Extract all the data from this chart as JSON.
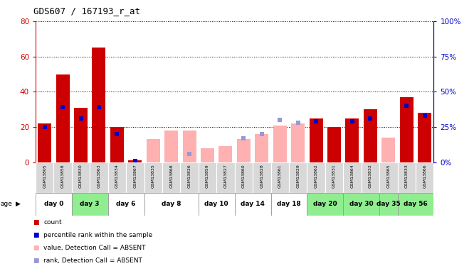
{
  "title": "GDS607 / 167193_r_at",
  "samples": [
    "GSM13805",
    "GSM13858",
    "GSM13830",
    "GSM13863",
    "GSM13834",
    "GSM13867",
    "GSM13835",
    "GSM13868",
    "GSM13826",
    "GSM13859",
    "GSM13827",
    "GSM13860",
    "GSM13828",
    "GSM13861",
    "GSM13829",
    "GSM13862",
    "GSM13831",
    "GSM13864",
    "GSM13832",
    "GSM13865",
    "GSM13833",
    "GSM13866"
  ],
  "count_values": [
    22,
    50,
    31,
    65,
    20,
    1,
    13,
    18,
    18,
    8,
    9,
    13,
    16,
    21,
    22,
    25,
    20,
    25,
    30,
    14,
    37,
    28
  ],
  "count_absent": [
    false,
    false,
    false,
    false,
    false,
    false,
    true,
    true,
    true,
    true,
    true,
    true,
    true,
    true,
    true,
    false,
    false,
    false,
    false,
    true,
    false,
    false
  ],
  "percentile_values": [
    25,
    39,
    31,
    39,
    20,
    1,
    0,
    0,
    6,
    0,
    0,
    17,
    20,
    30,
    28,
    29,
    0,
    29,
    31,
    0,
    40,
    33
  ],
  "percentile_absent": [
    false,
    false,
    false,
    false,
    false,
    false,
    true,
    true,
    true,
    true,
    true,
    true,
    true,
    true,
    true,
    false,
    false,
    false,
    false,
    true,
    false,
    false
  ],
  "day_groups": [
    {
      "label": "day 0",
      "start": 0,
      "end": 1,
      "green": false
    },
    {
      "label": "day 3",
      "start": 2,
      "end": 3,
      "green": true
    },
    {
      "label": "day 6",
      "start": 4,
      "end": 5,
      "green": false
    },
    {
      "label": "day 8",
      "start": 6,
      "end": 8,
      "green": false
    },
    {
      "label": "day 10",
      "start": 9,
      "end": 10,
      "green": false
    },
    {
      "label": "day 14",
      "start": 11,
      "end": 12,
      "green": false
    },
    {
      "label": "day 18",
      "start": 13,
      "end": 14,
      "green": false
    },
    {
      "label": "day 20",
      "start": 15,
      "end": 16,
      "green": true
    },
    {
      "label": "day 30",
      "start": 17,
      "end": 18,
      "green": true
    },
    {
      "label": "day 35",
      "start": 19,
      "end": 19,
      "green": true
    },
    {
      "label": "day 56",
      "start": 20,
      "end": 21,
      "green": true
    }
  ],
  "ylim_left": [
    0,
    80
  ],
  "ylim_right": [
    0,
    100
  ],
  "yticks_left": [
    0,
    20,
    40,
    60,
    80
  ],
  "yticks_right": [
    0,
    25,
    50,
    75,
    100
  ],
  "color_red": "#cc0000",
  "color_pink": "#ffb0b0",
  "color_blue": "#0000cc",
  "color_blue_light": "#9898d8",
  "color_gray_cell": "#d8d8d8",
  "color_green_cell": "#90ee90",
  "color_white_cell": "#ffffff"
}
